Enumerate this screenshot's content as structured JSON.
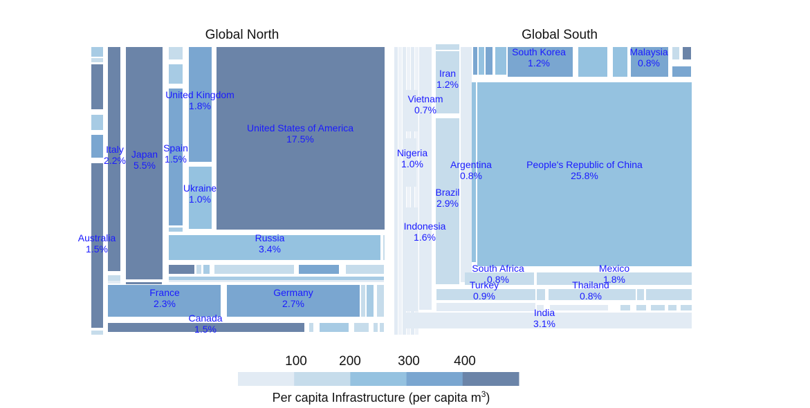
{
  "chart_data": {
    "type": "treemap",
    "panels": [
      {
        "title": "Global North",
        "items": [
          {
            "country": "United States of America",
            "share": "17.5%",
            "value": 480
          },
          {
            "country": "Japan",
            "share": "5.5%",
            "value": 460
          },
          {
            "country": "Russia",
            "share": "3.4%",
            "value": 230
          },
          {
            "country": "Germany",
            "share": "2.7%",
            "value": 350
          },
          {
            "country": "France",
            "share": "2.3%",
            "value": 350
          },
          {
            "country": "Italy",
            "share": "2.2%",
            "value": 440
          },
          {
            "country": "United Kingdom",
            "share": "1.8%",
            "value": 330
          },
          {
            "country": "Spain",
            "share": "1.5%",
            "value": 310
          },
          {
            "country": "Australia",
            "share": "1.5%",
            "value": 450
          },
          {
            "country": "Canada",
            "share": "1.5%",
            "value": 450
          },
          {
            "country": "Ukraine",
            "share": "1.0%",
            "value": 210
          }
        ]
      },
      {
        "title": "Global South",
        "items": [
          {
            "country": "People's Republic of China",
            "share": "25.8%",
            "value": 270
          },
          {
            "country": "India",
            "share": "3.1%",
            "value": 60
          },
          {
            "country": "Brazil",
            "share": "2.9%",
            "value": 160
          },
          {
            "country": "Indonesia",
            "share": "1.6%",
            "value": 60
          },
          {
            "country": "South Korea",
            "share": "1.2%",
            "value": 300
          },
          {
            "country": "Iran",
            "share": "1.2%",
            "value": 150
          },
          {
            "country": "Nigeria",
            "share": "1.0%",
            "value": 30
          },
          {
            "country": "Turkey",
            "share": "0.9%",
            "value": 100
          },
          {
            "country": "Malaysia",
            "share": "0.8%",
            "value": 320
          },
          {
            "country": "Argentina",
            "share": "0.8%",
            "value": 200
          },
          {
            "country": "South Africa",
            "share": "0.8%",
            "value": 150
          },
          {
            "country": "Thailand",
            "share": "0.8%",
            "value": 100
          },
          {
            "country": "Mexico",
            "share": "1.8%",
            "value": 110
          },
          {
            "country": "Vietnam",
            "share": "0.7%",
            "value": 70
          }
        ]
      }
    ],
    "legend": {
      "title": "Per capita Infrastructure (per capita m",
      "title_superscript": "3",
      "title_suffix": ")",
      "ticks": [
        "100",
        "200",
        "300",
        "400"
      ],
      "colors": [
        "#e2ebf4",
        "#c6dceb",
        "#95c2e0",
        "#7aa6d0",
        "#6b84a8"
      ]
    }
  }
}
